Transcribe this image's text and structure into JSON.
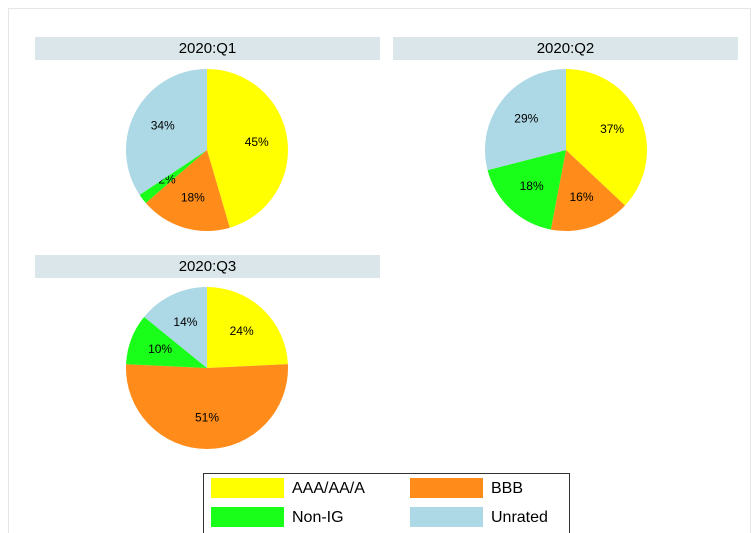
{
  "chart_data": [
    {
      "type": "pie",
      "title": "2020:Q1",
      "categories": [
        "AAA/AA/A",
        "BBB",
        "Non-IG",
        "Unrated"
      ],
      "values": [
        45,
        18,
        2,
        34
      ],
      "value_labels": [
        "45%",
        "18%",
        "2%",
        "34%"
      ],
      "colors": [
        "#ffff00",
        "#ff8c1a",
        "#1aff1a",
        "#add8e6"
      ]
    },
    {
      "type": "pie",
      "title": "2020:Q2",
      "categories": [
        "AAA/AA/A",
        "BBB",
        "Non-IG",
        "Unrated"
      ],
      "values": [
        37,
        16,
        18,
        29
      ],
      "value_labels": [
        "37%",
        "16%",
        "18%",
        "29%"
      ],
      "colors": [
        "#ffff00",
        "#ff8c1a",
        "#1aff1a",
        "#add8e6"
      ]
    },
    {
      "type": "pie",
      "title": "2020:Q3",
      "categories": [
        "AAA/AA/A",
        "BBB",
        "Non-IG",
        "Unrated"
      ],
      "values": [
        24,
        51,
        10,
        14
      ],
      "value_labels": [
        "24%",
        "51%",
        "10%",
        "14%"
      ],
      "colors": [
        "#ffff00",
        "#ff8c1a",
        "#1aff1a",
        "#add8e6"
      ]
    }
  ]
}
